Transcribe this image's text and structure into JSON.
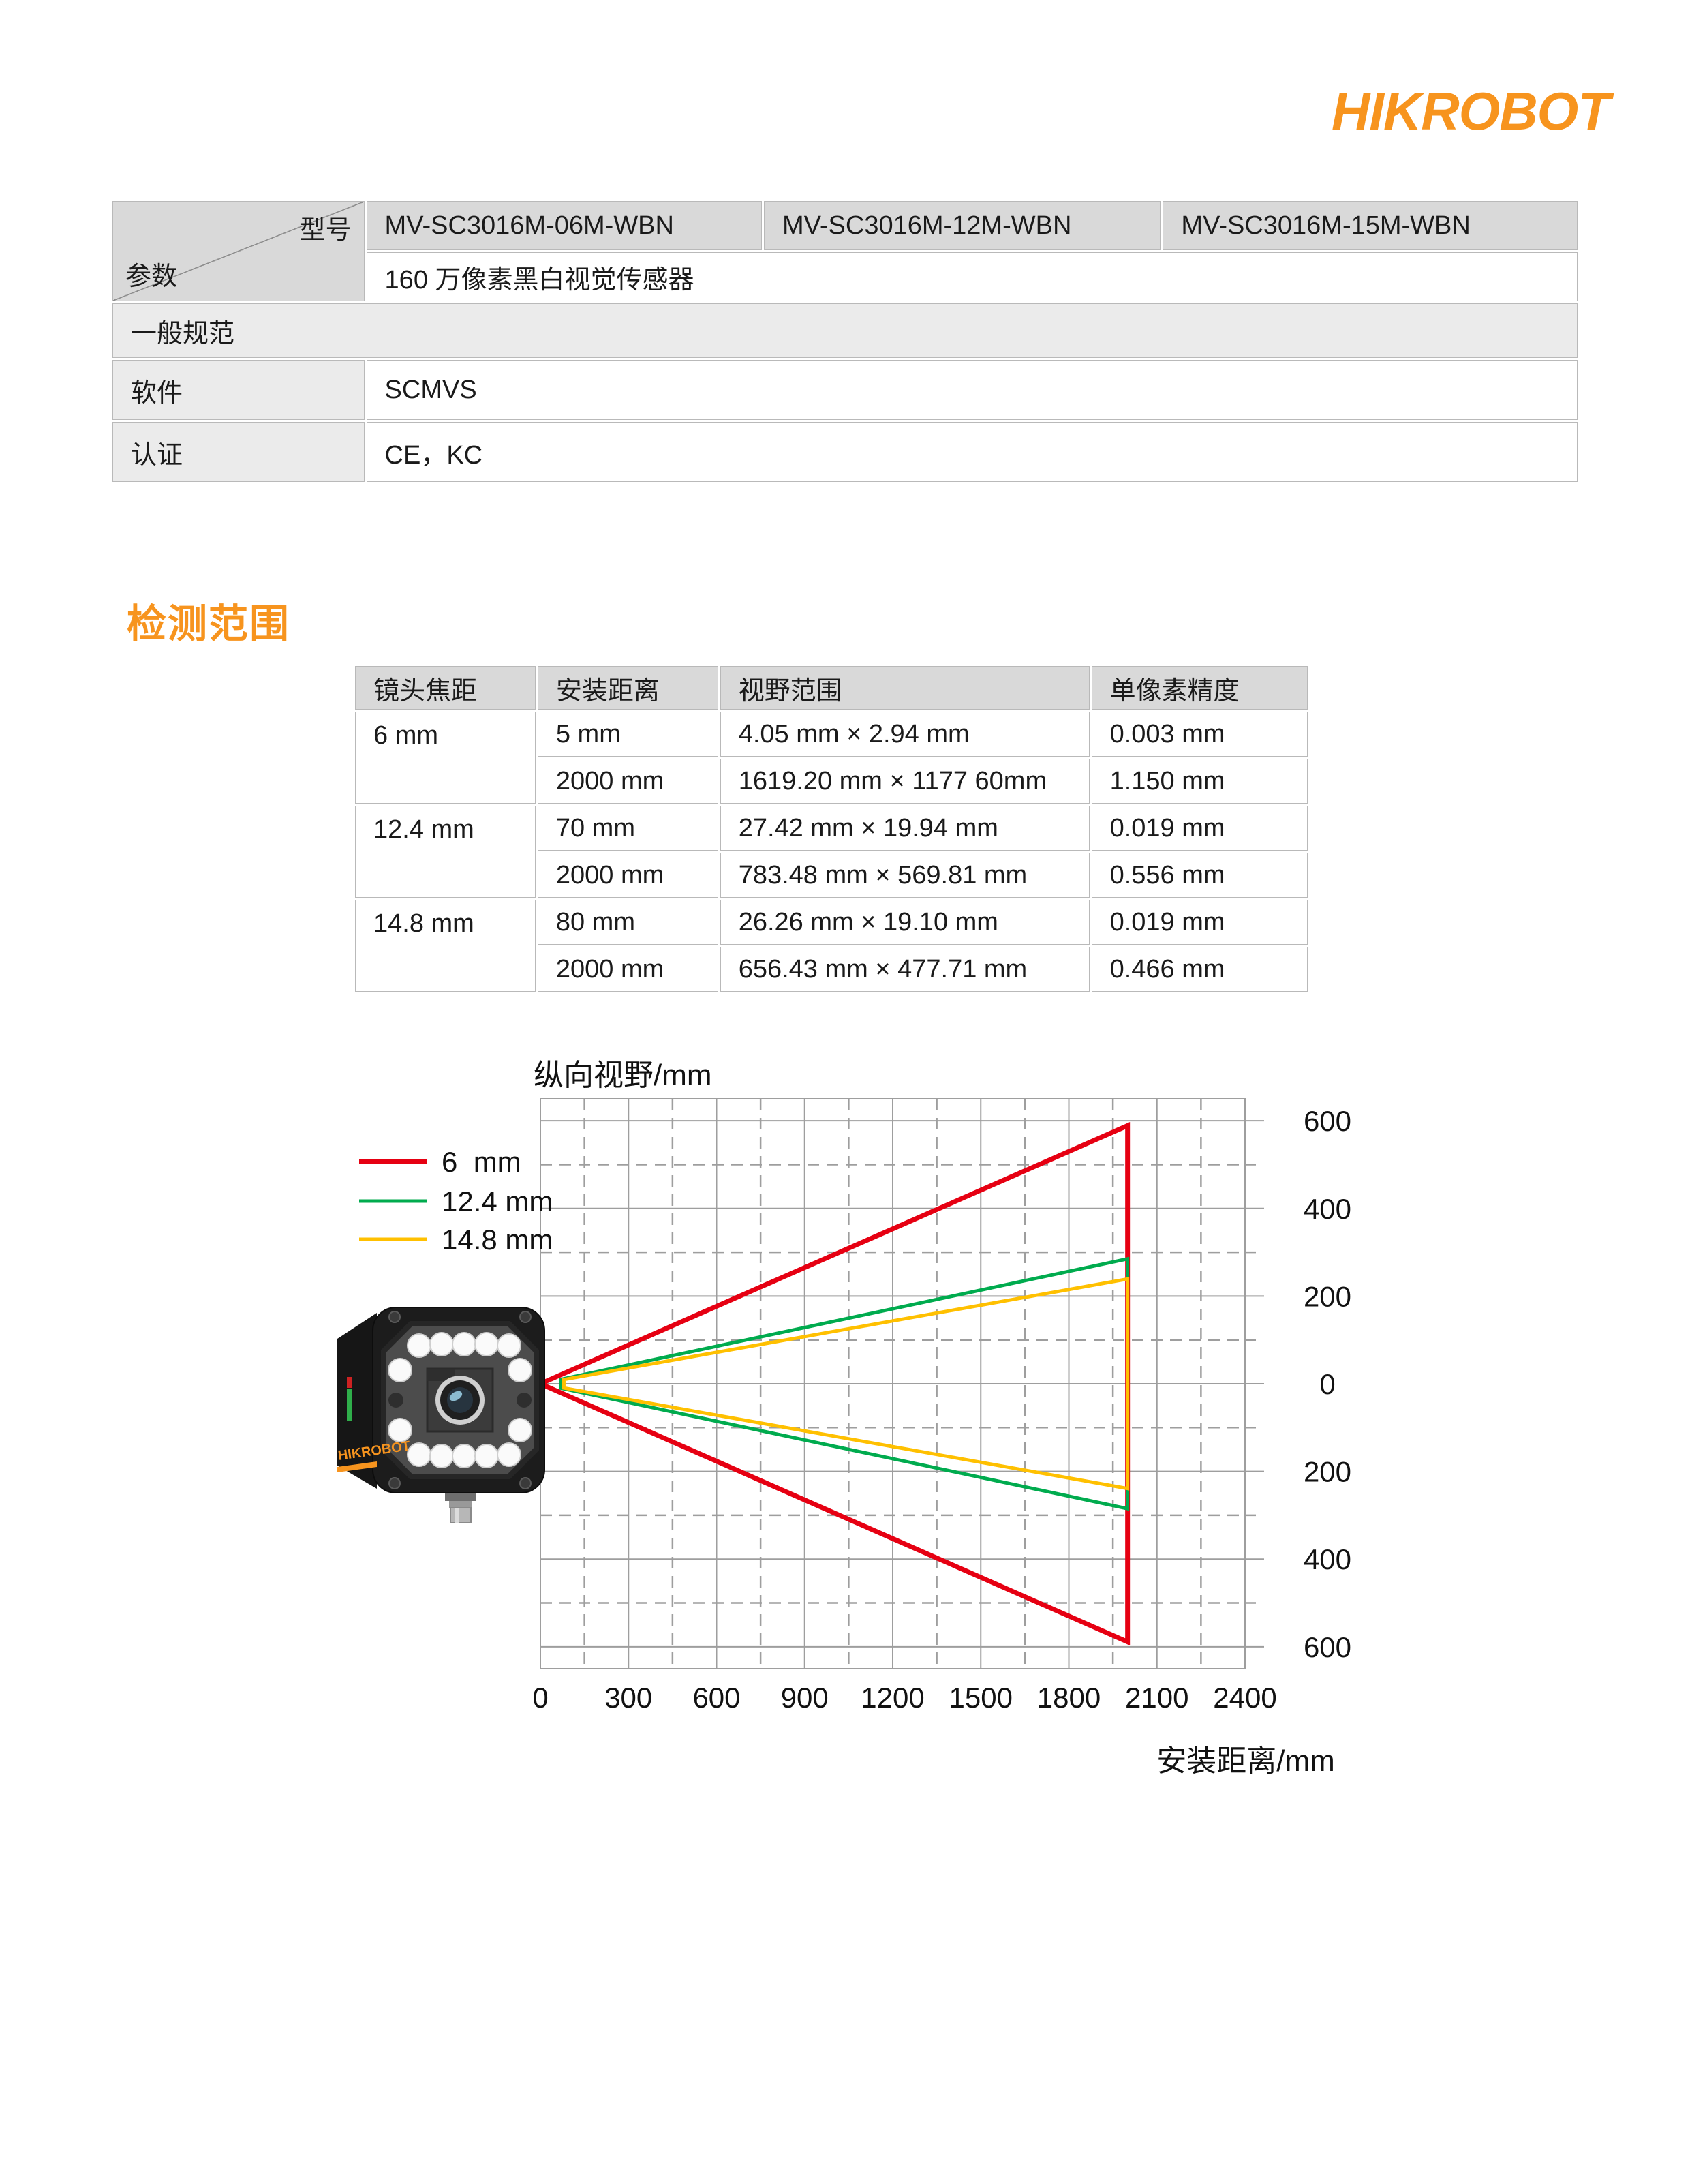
{
  "brand": {
    "logo": "HIKROBOT",
    "accent_color": "#f7941e"
  },
  "spec_table": {
    "corner": {
      "top": "型号",
      "bottom": "参数"
    },
    "models": [
      "MV-SC3016M-06M-WBN",
      "MV-SC3016M-12M-WBN",
      "MV-SC3016M-15M-WBN"
    ],
    "description": "160 万像素黑白视觉传感器",
    "section": "一般规范",
    "rows": [
      {
        "label": "软件",
        "value": "SCMVS"
      },
      {
        "label": "认证",
        "value": "CE，KC"
      }
    ]
  },
  "detection": {
    "title": "检测范围",
    "table": {
      "headers": [
        "镜头焦距",
        "安装距离",
        "视野范围",
        "单像素精度"
      ],
      "groups": [
        {
          "lens": "6 mm",
          "rows": [
            [
              "5 mm",
              "4.05 mm × 2.94 mm",
              "0.003 mm"
            ],
            [
              "2000 mm",
              "1619.20 mm × 1177 60mm",
              "1.150 mm"
            ]
          ]
        },
        {
          "lens": "12.4 mm",
          "rows": [
            [
              "70 mm",
              "27.42 mm × 19.94 mm",
              "0.019 mm"
            ],
            [
              "2000 mm",
              "783.48 mm × 569.81 mm",
              "0.556 mm"
            ]
          ]
        },
        {
          "lens": "14.8 mm",
          "rows": [
            [
              "80 mm",
              "26.26 mm × 19.10 mm",
              "0.019 mm"
            ],
            [
              "2000 mm",
              "656.43 mm × 477.71 mm",
              "0.466 mm"
            ]
          ]
        }
      ]
    }
  },
  "camera": {
    "side_label": "HIKROBOT"
  },
  "chart_data": {
    "type": "area",
    "title": "",
    "ylabel": "纵向视野/mm",
    "xlabel": "安装距离/mm",
    "xlim": [
      0,
      2400
    ],
    "ylim": [
      -650,
      650
    ],
    "x_ticks": [
      0,
      300,
      600,
      900,
      1200,
      1500,
      1800,
      2100,
      2400
    ],
    "y_tick_values": [
      600,
      400,
      200,
      0,
      -200,
      -400,
      -600
    ],
    "y_tick_labels": [
      "600",
      "400",
      "200",
      "0",
      "200",
      "400",
      "600"
    ],
    "grid": {
      "major": "solid",
      "minor": "dashed",
      "x_minor_step": 150,
      "y_minor_step": 100
    },
    "legend": {
      "position": "outside-left",
      "items": [
        "6  mm",
        "12.4 mm",
        "14.8 mm"
      ]
    },
    "series": [
      {
        "name": "6 mm",
        "color": "#e60012",
        "stroke_width": 7,
        "polygon": [
          [
            5,
            1.5
          ],
          [
            2000,
            588.8
          ],
          [
            2000,
            -588.8
          ],
          [
            5,
            -1.5
          ]
        ]
      },
      {
        "name": "12.4 mm",
        "color": "#00ab4e",
        "stroke_width": 5,
        "polygon": [
          [
            70,
            10.0
          ],
          [
            2000,
            284.9
          ],
          [
            2000,
            -284.9
          ],
          [
            70,
            -10.0
          ]
        ]
      },
      {
        "name": "14.8 mm",
        "color": "#ffc000",
        "stroke_width": 5,
        "polygon": [
          [
            80,
            9.6
          ],
          [
            2000,
            238.9
          ],
          [
            2000,
            -238.9
          ],
          [
            80,
            -9.6
          ]
        ]
      }
    ]
  }
}
